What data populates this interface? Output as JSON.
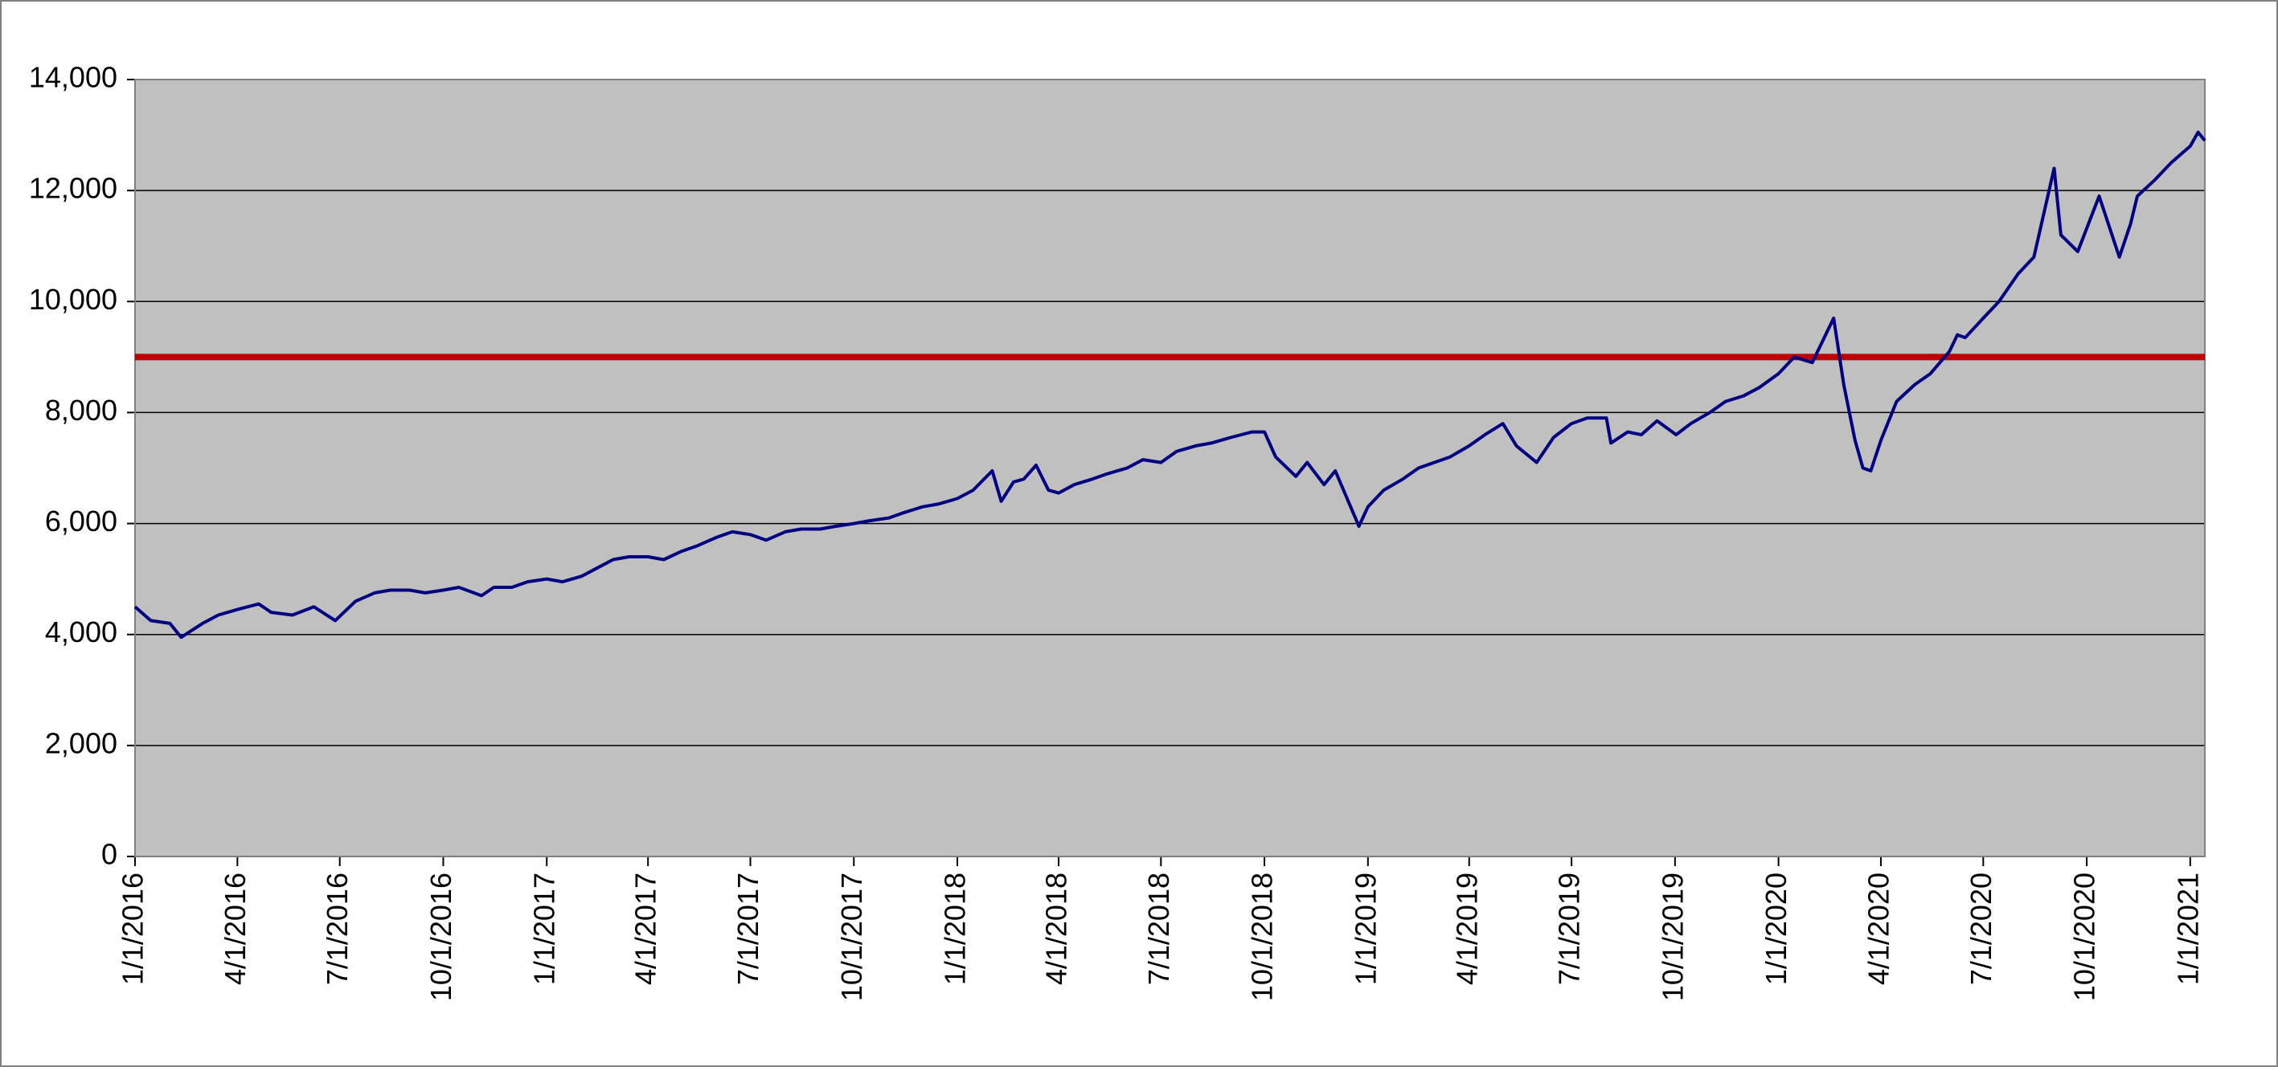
{
  "chart_data": {
    "type": "line",
    "x": [
      "1/1/2016",
      "1/15/2016",
      "2/1/2016",
      "2/11/2016",
      "3/1/2016",
      "3/15/2016",
      "4/1/2016",
      "4/20/2016",
      "5/1/2016",
      "5/20/2016",
      "6/8/2016",
      "6/27/2016",
      "7/15/2016",
      "8/1/2016",
      "8/15/2016",
      "9/1/2016",
      "9/15/2016",
      "10/1/2016",
      "10/15/2016",
      "11/4/2016",
      "11/15/2016",
      "12/1/2016",
      "12/15/2016",
      "1/1/2017",
      "1/15/2017",
      "2/1/2017",
      "2/15/2017",
      "3/1/2017",
      "3/15/2017",
      "4/1/2017",
      "4/15/2017",
      "5/1/2017",
      "5/15/2017",
      "6/1/2017",
      "6/15/2017",
      "7/1/2017",
      "7/15/2017",
      "8/1/2017",
      "8/15/2017",
      "9/1/2017",
      "9/15/2017",
      "10/1/2017",
      "10/15/2017",
      "11/1/2017",
      "11/15/2017",
      "12/1/2017",
      "12/15/2017",
      "1/1/2018",
      "1/15/2018",
      "2/1/2018",
      "2/9/2018",
      "2/20/2018",
      "3/1/2018",
      "3/12/2018",
      "3/23/2018",
      "4/1/2018",
      "4/15/2018",
      "5/1/2018",
      "5/15/2018",
      "6/1/2018",
      "6/15/2018",
      "7/1/2018",
      "7/15/2018",
      "8/1/2018",
      "8/15/2018",
      "9/1/2018",
      "9/20/2018",
      "10/1/2018",
      "10/11/2018",
      "10/29/2018",
      "11/8/2018",
      "11/23/2018",
      "12/3/2018",
      "12/24/2018",
      "1/1/2019",
      "1/15/2019",
      "2/1/2019",
      "2/15/2019",
      "3/1/2019",
      "3/15/2019",
      "4/1/2019",
      "4/15/2019",
      "5/1/2019",
      "5/13/2019",
      "5/31/2019",
      "6/15/2019",
      "7/1/2019",
      "7/15/2019",
      "8/1/2019",
      "8/5/2019",
      "8/20/2019",
      "9/1/2019",
      "9/15/2019",
      "10/2/2019",
      "10/15/2019",
      "11/1/2019",
      "11/15/2019",
      "12/1/2019",
      "12/15/2019",
      "1/1/2020",
      "1/15/2020",
      "1/31/2020",
      "2/19/2020",
      "2/28/2020",
      "3/9/2020",
      "3/16/2020",
      "3/23/2020",
      "4/1/2020",
      "4/15/2020",
      "5/1/2020",
      "5/15/2020",
      "6/1/2020",
      "6/8/2020",
      "6/15/2020",
      "7/1/2020",
      "7/15/2020",
      "8/1/2020",
      "8/15/2020",
      "9/2/2020",
      "9/8/2020",
      "9/23/2020",
      "10/12/2020",
      "10/30/2020",
      "11/9/2020",
      "11/15/2020",
      "12/1/2020",
      "12/15/2020",
      "1/1/2021",
      "1/8/2021",
      "1/14/2021"
    ],
    "series": [
      {
        "color": "#000080",
        "values": [
          4500,
          4250,
          4200,
          3950,
          4200,
          4350,
          4450,
          4550,
          4400,
          4350,
          4500,
          4250,
          4600,
          4750,
          4800,
          4800,
          4750,
          4800,
          4850,
          4700,
          4850,
          4850,
          4950,
          5000,
          4950,
          5050,
          5200,
          5350,
          5400,
          5400,
          5350,
          5500,
          5600,
          5750,
          5850,
          5800,
          5700,
          5850,
          5900,
          5900,
          5950,
          6000,
          6050,
          6100,
          6200,
          6300,
          6350,
          6450,
          6600,
          6950,
          6400,
          6750,
          6800,
          7050,
          6600,
          6550,
          6700,
          6800,
          6900,
          7000,
          7150,
          7100,
          7300,
          7400,
          7450,
          7550,
          7650,
          7650,
          7200,
          6850,
          7100,
          6700,
          6950,
          5950,
          6300,
          6600,
          6800,
          7000,
          7100,
          7200,
          7400,
          7600,
          7800,
          7400,
          7100,
          7550,
          7800,
          7900,
          7900,
          7450,
          7650,
          7600,
          7850,
          7600,
          7800,
          8000,
          8200,
          8300,
          8450,
          8700,
          9000,
          8900,
          9700,
          8500,
          7500,
          7000,
          6950,
          7500,
          8200,
          8500,
          8700,
          9100,
          9400,
          9350,
          9700,
          10000,
          10500,
          10800,
          12400,
          11200,
          10900,
          11900,
          10800,
          11400,
          11900,
          12200,
          12500,
          12800,
          13050,
          12900
        ]
      }
    ],
    "reference_line": {
      "value": 9000,
      "color": "#c00000"
    },
    "xlim": [
      "1/1/2016",
      "1/14/2021"
    ],
    "xticks": [
      "1/1/2016",
      "4/1/2016",
      "7/1/2016",
      "10/1/2016",
      "1/1/2017",
      "4/1/2017",
      "7/1/2017",
      "10/1/2017",
      "1/1/2018",
      "4/1/2018",
      "7/1/2018",
      "10/1/2018",
      "1/1/2019",
      "4/1/2019",
      "7/1/2019",
      "10/1/2019",
      "1/1/2020",
      "4/1/2020",
      "7/1/2020",
      "10/1/2020",
      "1/1/2021"
    ],
    "ylim": [
      0,
      14000
    ],
    "yticks": [
      0,
      {
        "value": 2000,
        "label": "2,000"
      },
      {
        "value": 4000,
        "label": "4,000"
      },
      {
        "value": 6000,
        "label": "6,000"
      },
      {
        "value": 8000,
        "label": "8,000"
      },
      {
        "value": 10000,
        "label": "10,000"
      },
      {
        "value": 12000,
        "label": "12,000"
      },
      {
        "value": 14000,
        "label": "14,000"
      }
    ],
    "grid": true,
    "plot_background": "#c0c0c0"
  }
}
